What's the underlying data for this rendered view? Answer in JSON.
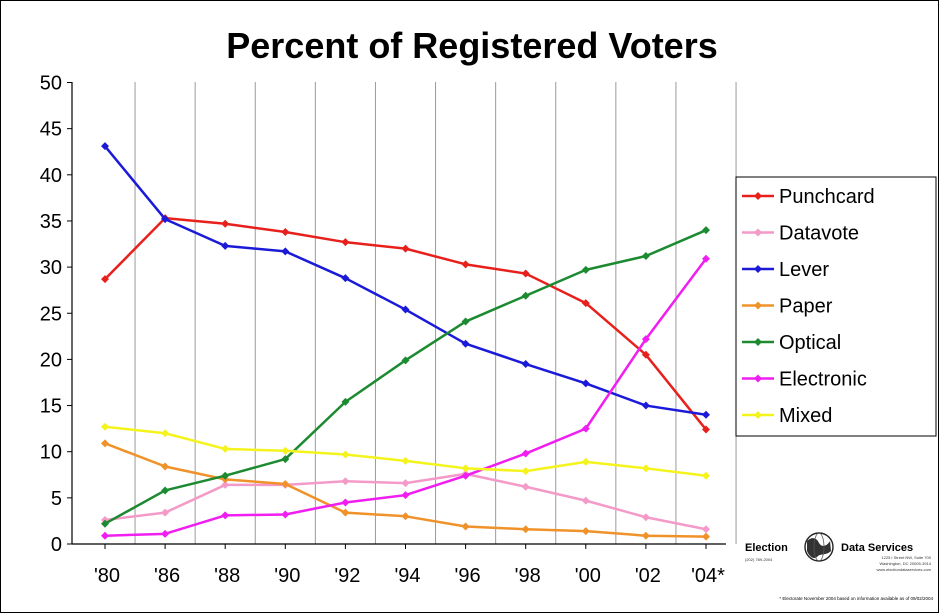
{
  "chart_data": {
    "type": "line",
    "title": "Percent of Registered Voters",
    "xlabel": "",
    "ylabel": "",
    "categories": [
      "'80",
      "'86",
      "'88",
      "'90",
      "'92",
      "'94",
      "'96",
      "'98",
      "'00",
      "'02",
      "'04*"
    ],
    "ylim": [
      0,
      50
    ],
    "yticks": [
      0,
      5,
      10,
      15,
      20,
      25,
      30,
      35,
      40,
      45,
      50
    ],
    "grid": "vertical",
    "legend_position": "right",
    "series": [
      {
        "name": "Punchcard",
        "color": "#e8201c",
        "values": [
          28.7,
          35.3,
          34.7,
          33.8,
          32.7,
          32.0,
          30.3,
          29.3,
          26.1,
          20.5,
          12.4
        ]
      },
      {
        "name": "Datavote",
        "color": "#f49ac8",
        "values": [
          2.6,
          3.4,
          6.4,
          6.4,
          6.8,
          6.6,
          7.6,
          6.2,
          4.7,
          2.9,
          1.6
        ]
      },
      {
        "name": "Lever",
        "color": "#1a1ad8",
        "values": [
          43.1,
          35.2,
          32.3,
          31.7,
          28.8,
          25.4,
          21.7,
          19.5,
          17.4,
          15.0,
          14.0
        ]
      },
      {
        "name": "Paper",
        "color": "#f0922a",
        "values": [
          10.9,
          8.4,
          7.0,
          6.5,
          3.4,
          3.0,
          1.9,
          1.6,
          1.4,
          0.9,
          0.8
        ]
      },
      {
        "name": "Optical",
        "color": "#1c8a30",
        "values": [
          2.2,
          5.8,
          7.4,
          9.2,
          15.4,
          19.9,
          24.1,
          26.9,
          29.7,
          31.2,
          34.0
        ]
      },
      {
        "name": "Electronic",
        "color": "#f01ef0",
        "values": [
          0.9,
          1.1,
          3.1,
          3.2,
          4.5,
          5.3,
          7.4,
          9.8,
          12.5,
          22.2,
          30.9
        ]
      },
      {
        "name": "Mixed",
        "color": "#f4f41c",
        "values": [
          12.7,
          12.0,
          10.3,
          10.1,
          9.7,
          9.0,
          8.2,
          7.9,
          8.9,
          8.2,
          7.4
        ]
      }
    ]
  },
  "logo": {
    "name_left": "Election",
    "name_right": "Data Services",
    "phone": "(202) 789-2004",
    "address_line1": "1225 I Street NW, Suite 700",
    "address_line2": "Washington, DC 20005-3914",
    "website": "www.electiondataservices.com"
  },
  "footnote": "* Electorate November 2004 based on information available as of 09/02/2004"
}
